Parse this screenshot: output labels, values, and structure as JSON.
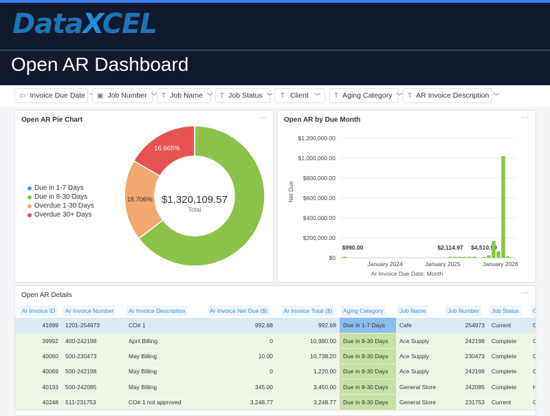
{
  "brand": {
    "logo_text_a": "Data",
    "logo_text_b": "X",
    "logo_text_c": "CEL",
    "accent": "#3b82f6"
  },
  "page_title": "Open AR Dashboard",
  "filters": [
    {
      "label": "Invoice Due Date",
      "icon": "calendar-icon"
    },
    {
      "label": "Job Number",
      "icon": "number-icon"
    },
    {
      "label": "Job Name",
      "icon": "text-icon"
    },
    {
      "label": "Job Status",
      "icon": "text-icon"
    },
    {
      "label": "Client",
      "icon": "text-icon"
    },
    {
      "label": "Aging Category",
      "icon": "text-icon"
    },
    {
      "label": "AR Invoice Description",
      "icon": "text-icon"
    }
  ],
  "pie_panel": {
    "title": "Open AR Pie Chart",
    "more": "···"
  },
  "bar_panel": {
    "title": "Open AR by Due Month",
    "more": "···"
  },
  "details_panel": {
    "title": "Open AR Details",
    "more": "···"
  },
  "chart_data": [
    {
      "type": "pie",
      "donut": true,
      "center_value": "$1,320,109.57",
      "center_label": "Total",
      "legend_position": "left",
      "slices": [
        {
          "name": "Due in 1-7 Days",
          "percent": 0.075,
          "color": "#4a9ee8",
          "label": ""
        },
        {
          "name": "Due in 8-30 Days",
          "percent": 64.554,
          "color": "#8bc34a",
          "label": ""
        },
        {
          "name": "Overdue 1-30 Days",
          "percent": 18.706,
          "color": "#f2a86f",
          "label": "18.706%"
        },
        {
          "name": "Overdue 30+ Days",
          "percent": 16.665,
          "color": "#e55353",
          "label": "16.665%"
        }
      ]
    },
    {
      "type": "bar",
      "xlabel": "Ar Invoice Due Date: Month",
      "ylabel": "Net Due",
      "ylim": [
        0,
        1200000
      ],
      "grid": true,
      "yticks": [
        "$0",
        "$200,000.00",
        "$400,000.00",
        "$600,000.00",
        "$800,000.00",
        "$1,000,000.00",
        "$1,200,000.00"
      ],
      "xticks": [
        {
          "label": "January 2024",
          "month": "2024-01"
        },
        {
          "label": "January 2025",
          "month": "2025-01"
        },
        {
          "label": "January 2026",
          "month": "2026-01"
        }
      ],
      "color": "#8bc34a",
      "bars": [
        {
          "month": "2023-05",
          "value": 990,
          "label": "$990.00"
        },
        {
          "month": "2025-03",
          "value": 2114.97,
          "label": "$2,114.97"
        },
        {
          "month": "2025-04",
          "value": 1500,
          "label": ""
        },
        {
          "month": "2025-05",
          "value": 1800,
          "label": ""
        },
        {
          "month": "2025-06",
          "value": 2000,
          "label": ""
        },
        {
          "month": "2025-07",
          "value": 1500,
          "label": ""
        },
        {
          "month": "2025-08",
          "value": 1200,
          "label": ""
        },
        {
          "month": "2025-10",
          "value": 4510.99,
          "label": "$4,510.99"
        },
        {
          "month": "2025-11",
          "value": 25000,
          "label": ""
        },
        {
          "month": "2025-12",
          "value": 170000,
          "label": ""
        },
        {
          "month": "2026-01",
          "value": 65000,
          "label": ""
        },
        {
          "month": "2026-02",
          "value": 1020000,
          "label": ""
        },
        {
          "month": "2026-03",
          "value": 15000,
          "label": ""
        }
      ]
    }
  ],
  "table": {
    "columns": [
      "Ar Invoice ID",
      "Ar Invoice Number",
      "Ar Invoice Description",
      "Ar Invoice Net Due ($)",
      "Ar Invoice Total ($)",
      "Aging Category",
      "Job Name",
      "Job Number",
      "Job Status",
      "Cli"
    ],
    "rows": [
      [
        "41699",
        "1201-254973",
        "CO# 1",
        "992.68",
        "992.68",
        "Due in 1-7 Days",
        "Cafe",
        "254973",
        "Current",
        "Cafe"
      ],
      [
        "39992",
        "400-242198",
        "April Billing",
        "0",
        "10,980.00",
        "Due in 8-30 Days",
        "Ace Supply",
        "242198",
        "Complete",
        "Cafe"
      ],
      [
        "40060",
        "500-230473",
        "May Billing",
        "10.00",
        "10,738.20",
        "Due in 8-30 Days",
        "Ace Supply",
        "230473",
        "Complete",
        "Cafe"
      ],
      [
        "40069",
        "500-242198",
        "May Billing",
        "0",
        "1,220.00",
        "Due in 8-30 Days",
        "Ace Supply",
        "242198",
        "Complete",
        "Cafe"
      ],
      [
        "40133",
        "500-242085",
        "May Billing",
        "345.00",
        "3,450.00",
        "Due in 8-30 Days",
        "General Store",
        "242085",
        "Complete",
        "Hard"
      ],
      [
        "40248",
        "511-231753",
        "CO# 1 not approved",
        "3,248.77",
        "3,248.77",
        "Due in 8-30 Days",
        "General Store",
        "231753",
        "Current",
        "Gen"
      ]
    ]
  }
}
